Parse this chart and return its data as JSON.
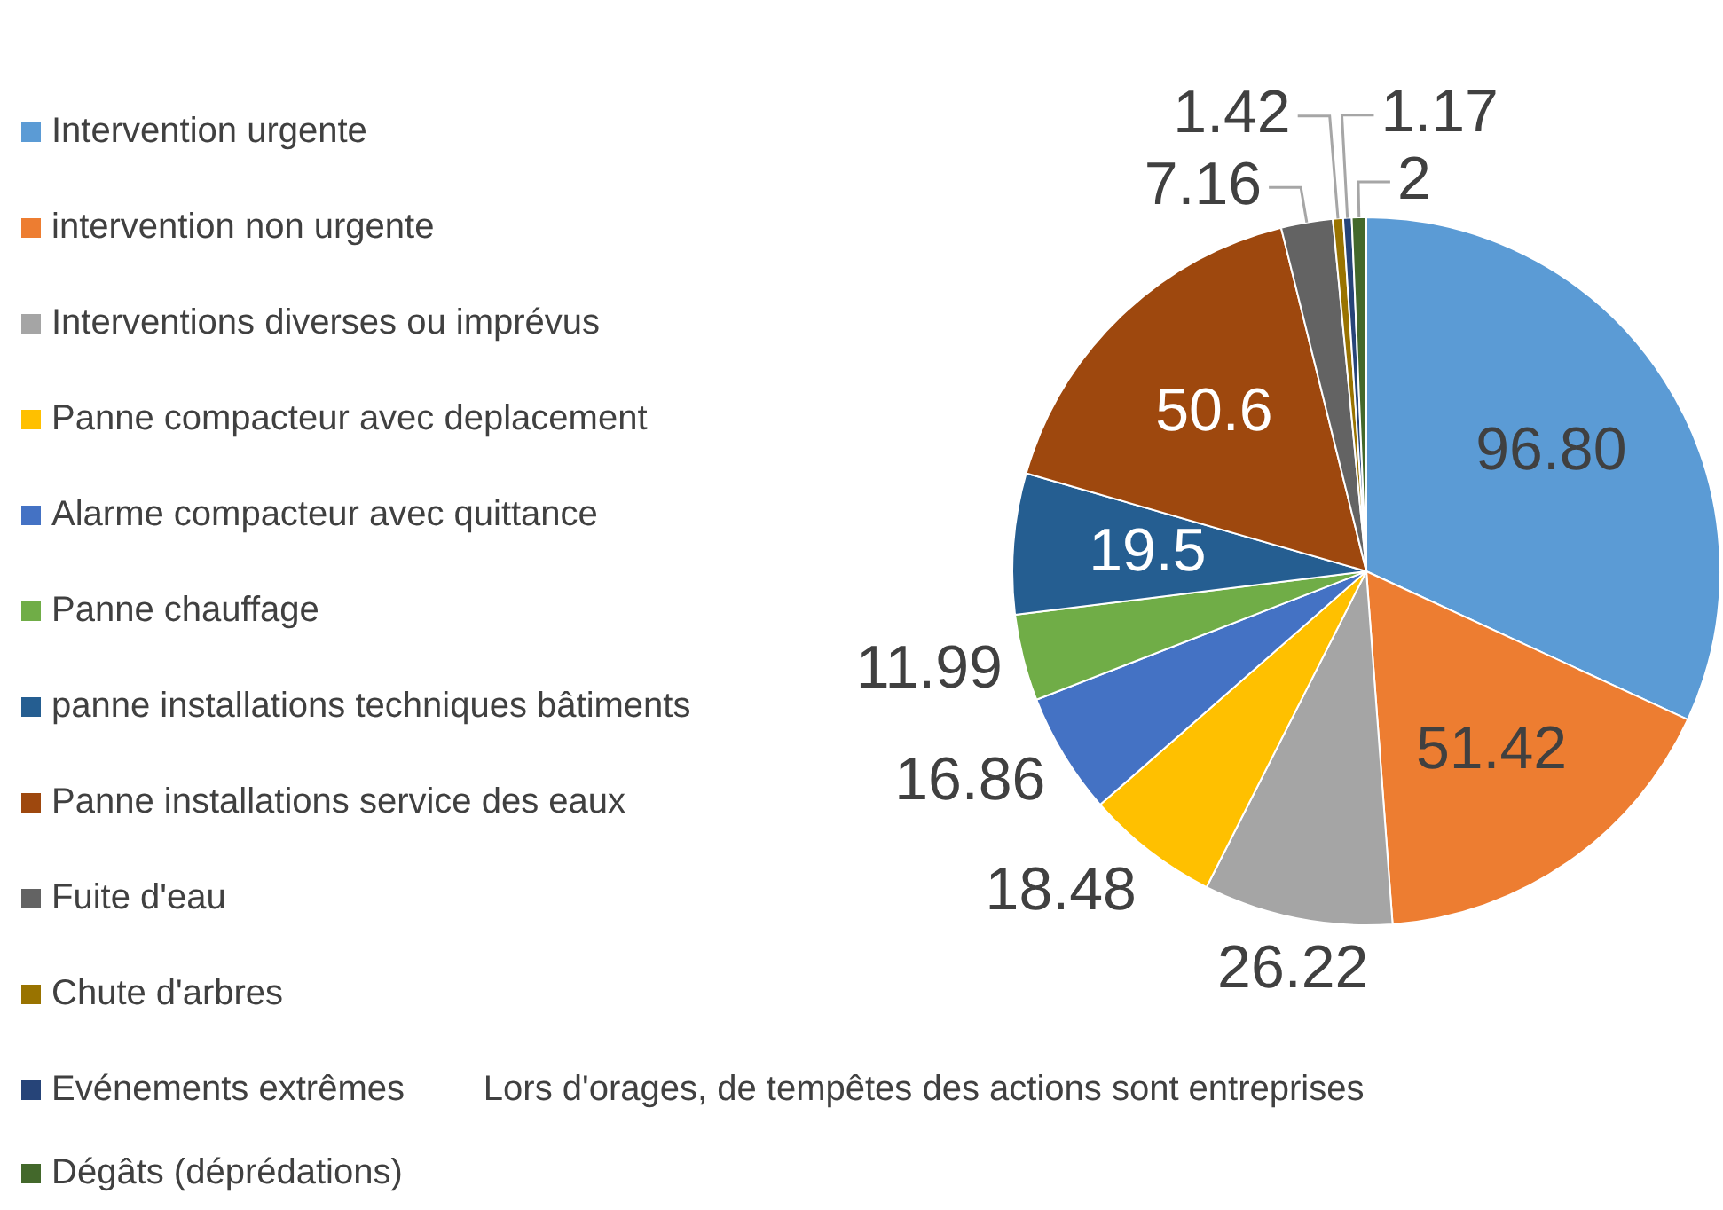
{
  "chart_data": {
    "type": "pie",
    "categories": [
      "Intervention urgente",
      "intervention non urgente",
      "Interventions diverses ou imprévus",
      "Panne compacteur avec deplacement",
      "Alarme compacteur avec quittance",
      "Panne chauffage",
      "panne installations techniques bâtiments",
      "Panne installations service des eaux",
      "Fuite d'eau",
      "Chute d'arbres",
      "Evénements extrêmes        Lors d'orages, de tempêtes des actions sont entreprises",
      "Dégâts (déprédations)"
    ],
    "values": [
      96.8,
      51.42,
      26.22,
      18.48,
      16.86,
      11.99,
      19.5,
      50.6,
      7.16,
      1.42,
      1.17,
      2
    ],
    "value_labels": [
      "96.80",
      "51.42",
      "26.22",
      "18.48",
      "16.86",
      "11.99",
      "19.5",
      "50.6",
      "7.16",
      "1.42",
      "1.17",
      "2"
    ],
    "colors": [
      "#5b9bd5",
      "#ed7d31",
      "#a5a5a5",
      "#ffc000",
      "#4472c4",
      "#70ad47",
      "#255e91",
      "#9e480e",
      "#636363",
      "#997300",
      "#264478",
      "#43682b"
    ],
    "legend": "left"
  }
}
